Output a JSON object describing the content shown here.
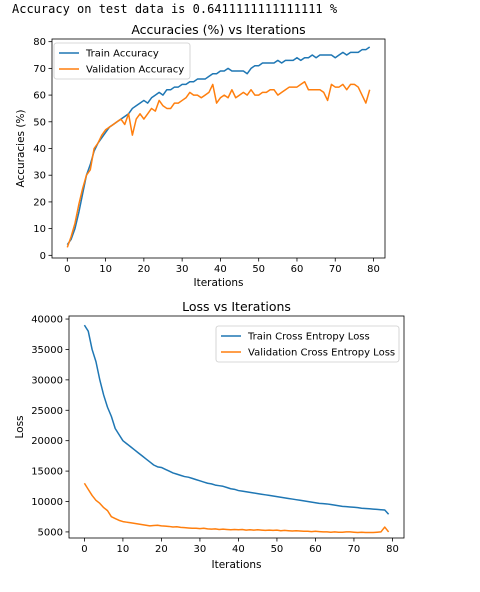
{
  "output_line": "Accuracy on test data is 0.6411111111111111 %",
  "colors": {
    "train": "#1f77b4",
    "validation": "#ff7f0e",
    "axis": "#000000"
  },
  "chart_data": [
    {
      "type": "line",
      "title": "Accuracies (%) vs Iterations",
      "xlabel": "Iterations",
      "ylabel": "Accuracies (%)",
      "xlim": [
        -4,
        83
      ],
      "ylim": [
        -1,
        81
      ],
      "xticks": [
        0,
        10,
        20,
        30,
        40,
        50,
        60,
        70,
        80
      ],
      "yticks": [
        0,
        10,
        20,
        30,
        40,
        50,
        60,
        70,
        80
      ],
      "grid": false,
      "legend": "upper left",
      "x": [
        0,
        1,
        2,
        3,
        4,
        5,
        6,
        7,
        8,
        9,
        10,
        11,
        12,
        13,
        14,
        15,
        16,
        17,
        18,
        19,
        20,
        21,
        22,
        23,
        24,
        25,
        26,
        27,
        28,
        29,
        30,
        31,
        32,
        33,
        34,
        35,
        36,
        37,
        38,
        39,
        40,
        41,
        42,
        43,
        44,
        45,
        46,
        47,
        48,
        49,
        50,
        51,
        52,
        53,
        54,
        55,
        56,
        57,
        58,
        59,
        60,
        61,
        62,
        63,
        64,
        65,
        66,
        67,
        68,
        69,
        70,
        71,
        72,
        73,
        74,
        75,
        76,
        77,
        78,
        79
      ],
      "series": [
        {
          "name": "Train Accuracy",
          "values": [
            4,
            6,
            10,
            16,
            23,
            30,
            34,
            39,
            42,
            44,
            46,
            48,
            49,
            50,
            51,
            52,
            53,
            55,
            56,
            57,
            58,
            57,
            59,
            60,
            61,
            60,
            62,
            62,
            63,
            63,
            64,
            64,
            65,
            65,
            66,
            66,
            66,
            67,
            68,
            68,
            69,
            69,
            70,
            69,
            69,
            69,
            69,
            68,
            70,
            71,
            71,
            72,
            72,
            72,
            72,
            73,
            72,
            73,
            73,
            73,
            74,
            73,
            74,
            74,
            75,
            74,
            75,
            75,
            75,
            75,
            74,
            75,
            76,
            75,
            76,
            76,
            76,
            77,
            77,
            78
          ]
        },
        {
          "name": "Validation Accuracy",
          "values": [
            3,
            7,
            12,
            19,
            25,
            30,
            32,
            40,
            42,
            45,
            47,
            48,
            49,
            50,
            51,
            49,
            53,
            45,
            51,
            53,
            51,
            53,
            55,
            54,
            58,
            56,
            55,
            55,
            57,
            57,
            58,
            59,
            61,
            60,
            60,
            59,
            60,
            61,
            64,
            57,
            59,
            60,
            59,
            62,
            59,
            60,
            61,
            60,
            62,
            60,
            60,
            61,
            61,
            62,
            62,
            60,
            61,
            62,
            63,
            63,
            63,
            64,
            65,
            62,
            62,
            62,
            62,
            61,
            58,
            64,
            63,
            63,
            64,
            62,
            64,
            64,
            63,
            60,
            57,
            62
          ]
        }
      ]
    },
    {
      "type": "line",
      "title": "Loss vs Iterations",
      "xlabel": "Iterations",
      "ylabel": "Loss",
      "xlim": [
        -4,
        83
      ],
      "ylim": [
        4000,
        40500
      ],
      "xticks": [
        0,
        10,
        20,
        30,
        40,
        50,
        60,
        70,
        80
      ],
      "yticks": [
        5000,
        10000,
        15000,
        20000,
        25000,
        30000,
        35000,
        40000
      ],
      "grid": false,
      "legend": "upper right",
      "x": [
        0,
        1,
        2,
        3,
        4,
        5,
        6,
        7,
        8,
        9,
        10,
        11,
        12,
        13,
        14,
        15,
        16,
        17,
        18,
        19,
        20,
        21,
        22,
        23,
        24,
        25,
        26,
        27,
        28,
        29,
        30,
        31,
        32,
        33,
        34,
        35,
        36,
        37,
        38,
        39,
        40,
        41,
        42,
        43,
        44,
        45,
        46,
        47,
        48,
        49,
        50,
        51,
        52,
        53,
        54,
        55,
        56,
        57,
        58,
        59,
        60,
        61,
        62,
        63,
        64,
        65,
        66,
        67,
        68,
        69,
        70,
        71,
        72,
        73,
        74,
        75,
        76,
        77,
        78,
        79
      ],
      "series": [
        {
          "name": "Train Cross Entropy Loss",
          "values": [
            39000,
            38000,
            35000,
            33000,
            30000,
            27500,
            25500,
            24000,
            22000,
            21000,
            20000,
            19500,
            19000,
            18500,
            18000,
            17500,
            17000,
            16500,
            16000,
            15700,
            15600,
            15300,
            15000,
            14700,
            14500,
            14300,
            14100,
            14000,
            13800,
            13600,
            13400,
            13200,
            13000,
            12900,
            12700,
            12600,
            12500,
            12300,
            12100,
            12000,
            11800,
            11700,
            11600,
            11500,
            11400,
            11300,
            11200,
            11100,
            11000,
            10900,
            10800,
            10700,
            10600,
            10500,
            10400,
            10300,
            10200,
            10100,
            10000,
            9900,
            9800,
            9700,
            9650,
            9600,
            9500,
            9400,
            9300,
            9200,
            9150,
            9100,
            9050,
            9000,
            8900,
            8850,
            8800,
            8750,
            8700,
            8650,
            8600,
            7900
          ]
        },
        {
          "name": "Validation Cross Entropy Loss",
          "values": [
            13000,
            12000,
            11000,
            10200,
            9700,
            9000,
            8500,
            7500,
            7200,
            6900,
            6700,
            6600,
            6500,
            6400,
            6300,
            6200,
            6100,
            6000,
            6050,
            6100,
            6000,
            5950,
            5900,
            5800,
            5850,
            5750,
            5700,
            5650,
            5600,
            5600,
            5550,
            5600,
            5500,
            5450,
            5500,
            5400,
            5450,
            5400,
            5350,
            5400,
            5350,
            5400,
            5300,
            5350,
            5300,
            5350,
            5300,
            5250,
            5300,
            5250,
            5300,
            5200,
            5250,
            5200,
            5150,
            5200,
            5150,
            5100,
            5100,
            5050,
            5100,
            5050,
            5000,
            5000,
            4950,
            5000,
            4950,
            4950,
            5000,
            5000,
            4950,
            4900,
            4950,
            4900,
            4900,
            4900,
            4950,
            5000,
            5800,
            5000
          ]
        }
      ]
    }
  ]
}
